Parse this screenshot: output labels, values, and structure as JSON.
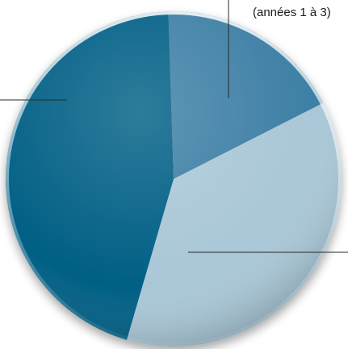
{
  "chart_data": {
    "type": "pie",
    "title": "",
    "slices": [
      {
        "value": 37,
        "color": "#a9c7d7"
      },
      {
        "value": 45,
        "color": "#005f85"
      },
      {
        "value": 18,
        "color": "#3c7fa5"
      }
    ],
    "start_angle_deg": -27,
    "annotations": [
      {
        "text": "(années 1 à 3)"
      }
    ]
  },
  "colors": {
    "leader_line": "#2a2a2a",
    "rim_light": "#e6eef2",
    "rim_dark": "#0a3d56"
  }
}
